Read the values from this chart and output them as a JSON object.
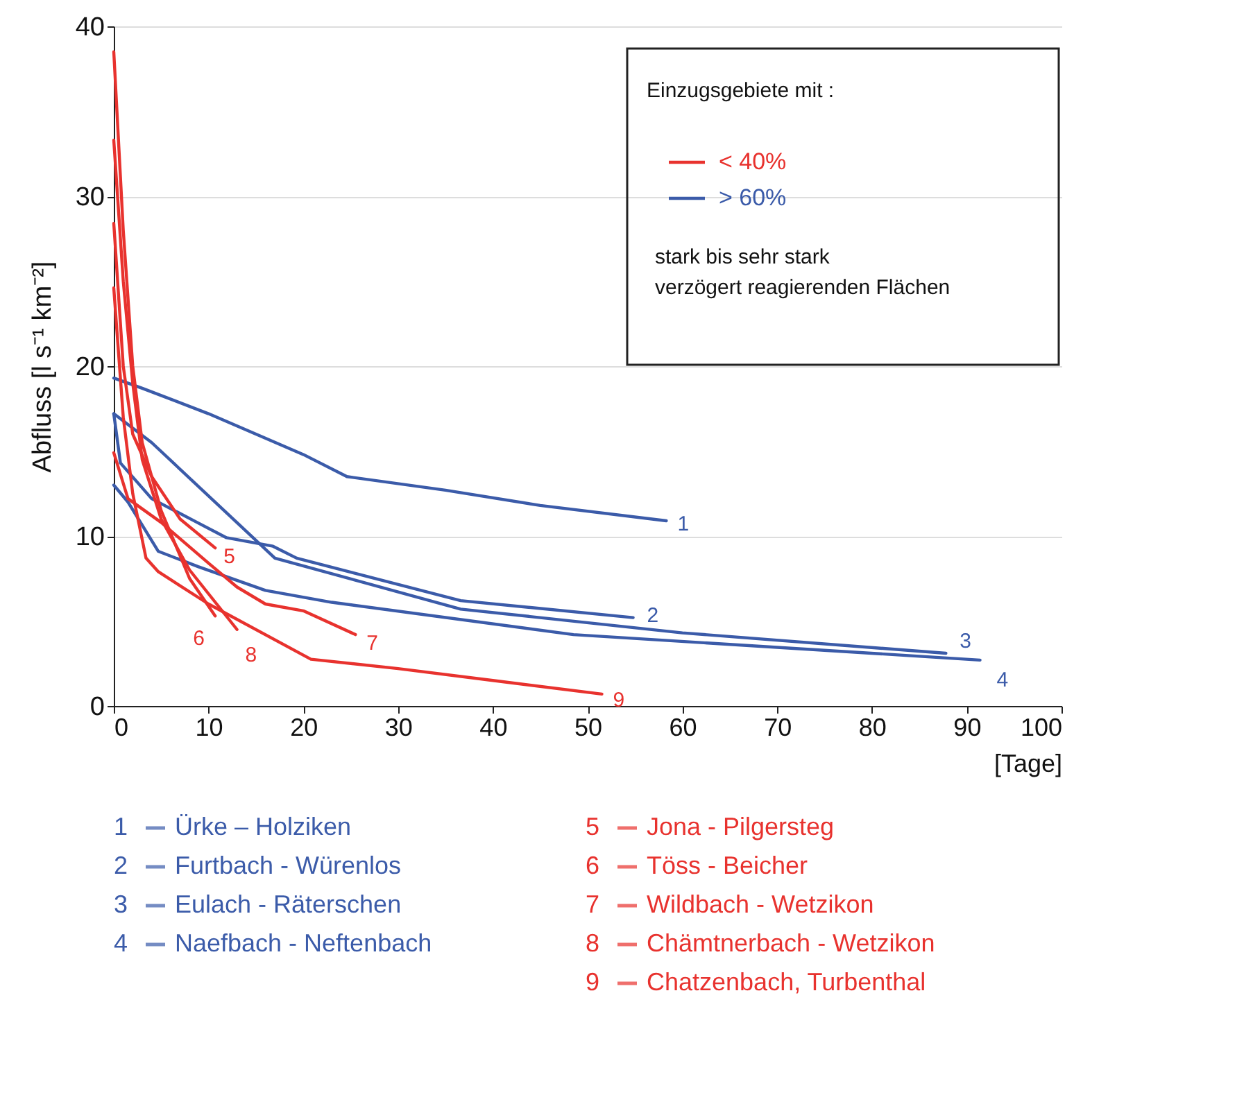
{
  "chart_data": {
    "type": "line",
    "xlabel": "[Tage]",
    "ylabel": "Abfluss  [l s⁻¹ km⁻²]",
    "legend_title": "Einzugsgebiete mit :",
    "xlim": [
      0,
      100
    ],
    "ylim": [
      0,
      40
    ],
    "xticks": [
      0,
      10,
      20,
      30,
      40,
      50,
      60,
      70,
      80,
      90,
      100
    ],
    "yticks": [
      0,
      10,
      20,
      30,
      40
    ],
    "grid": "y",
    "legend": "bottom",
    "line_style": "solid",
    "marker": "none",
    "series": [
      {
        "name": "Ürke – Holziken",
        "color": "#3b5ba9",
        "x": [
          0,
          3,
          10,
          20,
          24.6,
          35,
          45,
          58.3
        ],
        "values": [
          19.3,
          18.7,
          17.2,
          14.8,
          13.5,
          12.7,
          11.8,
          10.9
        ]
      },
      {
        "name": "Furtbach - Würenlos",
        "color": "#3b5ba9",
        "x": [
          0,
          0.7,
          4,
          8.8,
          11.9,
          16.8,
          19.3,
          36.6,
          54.8
        ],
        "values": [
          17.2,
          14.3,
          12.2,
          10.8,
          9.9,
          9.4,
          8.7,
          6.2,
          5.2
        ]
      },
      {
        "name": "Eulach - Räterschen",
        "color": "#3b5ba9",
        "x": [
          0,
          4,
          17,
          36.6,
          60,
          87.8
        ],
        "values": [
          17.2,
          15.5,
          8.7,
          5.7,
          4.3,
          3.1
        ]
      },
      {
        "name": "Naefbach - Neftenbach",
        "color": "#3b5ba9",
        "x": [
          0,
          1.5,
          4.7,
          8.9,
          16,
          23,
          48.5,
          91.4
        ],
        "values": [
          13.0,
          12.0,
          9.1,
          8.2,
          6.8,
          6.1,
          4.2,
          2.7
        ]
      },
      {
        "name": "Jona - Pilgersteg",
        "color": "#e8322e",
        "x": [
          0,
          1,
          2,
          4,
          7,
          10.7
        ],
        "values": [
          28.4,
          20,
          16,
          13.5,
          11,
          9.3
        ]
      },
      {
        "name": "Töss - Beicher",
        "color": "#e8322e",
        "x": [
          0,
          1,
          2,
          3,
          5,
          8,
          10.7
        ],
        "values": [
          38.5,
          28,
          20,
          15.5,
          11.5,
          7.5,
          5.3
        ]
      },
      {
        "name": "Wildbach - Wetzikon",
        "color": "#e8322e",
        "x": [
          0,
          1.5,
          5,
          10,
          13,
          16,
          20,
          25.5
        ],
        "values": [
          14.9,
          12.2,
          10.8,
          8.4,
          7.0,
          6.0,
          5.6,
          4.2
        ]
      },
      {
        "name": "Chämtnerbach - Wetzikon",
        "color": "#e8322e",
        "x": [
          0,
          1,
          2,
          3,
          5,
          8,
          13
        ],
        "values": [
          33.3,
          25,
          19,
          14.5,
          11,
          8,
          4.5
        ]
      },
      {
        "name": "Chatzenbach, Turbenthal",
        "color": "#e8322e",
        "x": [
          0,
          1,
          2,
          3.4,
          4.7,
          10,
          20.8,
          30,
          40,
          51.5
        ],
        "values": [
          24.6,
          17,
          12.5,
          8.7,
          7.9,
          6.0,
          2.75,
          2.2,
          1.5,
          0.7
        ]
      }
    ],
    "annotations": [
      {
        "text": "1",
        "x": 58.3,
        "y": 10.9
      },
      {
        "text": "2",
        "x": 54.8,
        "y": 5.2
      },
      {
        "text": "3",
        "x": 87.8,
        "y": 3.1
      },
      {
        "text": "4",
        "x": 91.4,
        "y": 2.7
      },
      {
        "text": "5",
        "x": 10.7,
        "y": 9.3
      },
      {
        "text": "6",
        "x": 10.7,
        "y": 5.3
      },
      {
        "text": "7",
        "x": 25.5,
        "y": 4.2
      },
      {
        "text": "8",
        "x": 13,
        "y": 4.5
      },
      {
        "text": "9",
        "x": 51.5,
        "y": 0.7
      },
      "< 40%",
      "> 60%",
      "stark bis sehr stark verzögert reagierenden Flächen"
    ]
  }
}
